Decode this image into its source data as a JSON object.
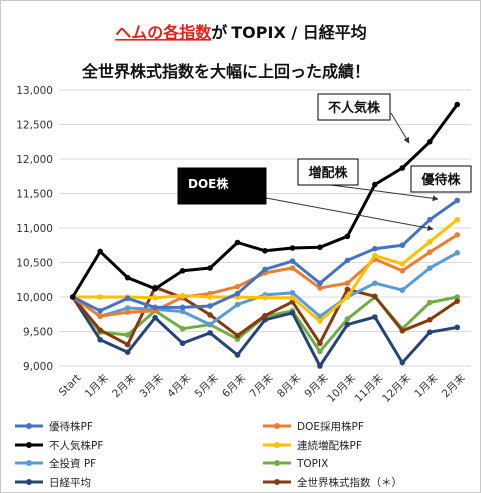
{
  "chart_data": {
    "type": "line",
    "title_parts": [
      "ヘムの各指数",
      "が",
      "TOPIX / 日経平均"
    ],
    "subtitle": "全世界株式指数を大幅に上回った成績！",
    "categories": [
      "Start",
      "1月末",
      "2月末",
      "3月末",
      "4月末",
      "5月末",
      "6月末",
      "7月末",
      "8月末",
      "9月末",
      "10月末",
      "11月末",
      "12月末",
      "1月末",
      "2月末"
    ],
    "yticks": [
      9000,
      9500,
      10000,
      10500,
      11000,
      11500,
      12000,
      12500,
      13000
    ],
    "ytick_labels": [
      "9,000",
      "9,500",
      "10,000",
      "10,500",
      "11,000",
      "11,500",
      "12,000",
      "12,500",
      "13,000"
    ],
    "ylim": [
      9000,
      13000
    ],
    "grid": true,
    "legend_position": "bottom",
    "series": [
      {
        "name": "優待株PF",
        "color": "#4472c4",
        "values": [
          10000,
          9800,
          9980,
          9850,
          9850,
          9870,
          10050,
          10400,
          10520,
          10200,
          10530,
          10700,
          10750,
          11120,
          11400
        ]
      },
      {
        "name": "DOE採用株PF",
        "color": "#ed7d31",
        "values": [
          10000,
          9720,
          9780,
          9800,
          10000,
          10050,
          10150,
          10350,
          10420,
          10130,
          10200,
          10550,
          10380,
          10650,
          10900
        ]
      },
      {
        "name": "不人気株PF",
        "color": "#000000",
        "values": [
          10000,
          10660,
          10280,
          10120,
          10380,
          10420,
          10790,
          10670,
          10710,
          10720,
          10880,
          11630,
          11870,
          12250,
          12790
        ]
      },
      {
        "name": "連続増配株PF",
        "color": "#ffc000",
        "values": [
          10000,
          10000,
          10000,
          9990,
          10020,
          10000,
          10000,
          9990,
          9990,
          9650,
          10000,
          10600,
          10480,
          10800,
          11120
        ]
      },
      {
        "name": "全投資 PF",
        "color": "#5b9bd5",
        "values": [
          10000,
          9720,
          9840,
          9820,
          9790,
          9600,
          9890,
          10030,
          10060,
          9720,
          10000,
          10200,
          10100,
          10420,
          10640
        ]
      },
      {
        "name": "TOPIX",
        "color": "#70ad47",
        "values": [
          10000,
          9490,
          9450,
          9800,
          9540,
          9600,
          9390,
          9720,
          9800,
          9210,
          9680,
          10000,
          9540,
          9920,
          10000
        ]
      },
      {
        "name": "日経平均",
        "color": "#264478",
        "values": [
          10000,
          9380,
          9200,
          9700,
          9330,
          9480,
          9160,
          9670,
          9770,
          9000,
          9600,
          9710,
          9050,
          9490,
          9560
        ]
      },
      {
        "name": "全世界株式指数（＊）",
        "color": "#843c0c",
        "values": [
          10000,
          9520,
          9310,
          10140,
          9990,
          9740,
          9440,
          9730,
          9930,
          9330,
          10110,
          10010,
          9510,
          9670,
          9940
        ]
      }
    ],
    "annotations": [
      {
        "text": "不人気株",
        "box": "white"
      },
      {
        "text": "増配株",
        "box": "white"
      },
      {
        "text": "優待株",
        "box": "white"
      },
      {
        "text": "DOE株",
        "box": "black"
      }
    ]
  }
}
